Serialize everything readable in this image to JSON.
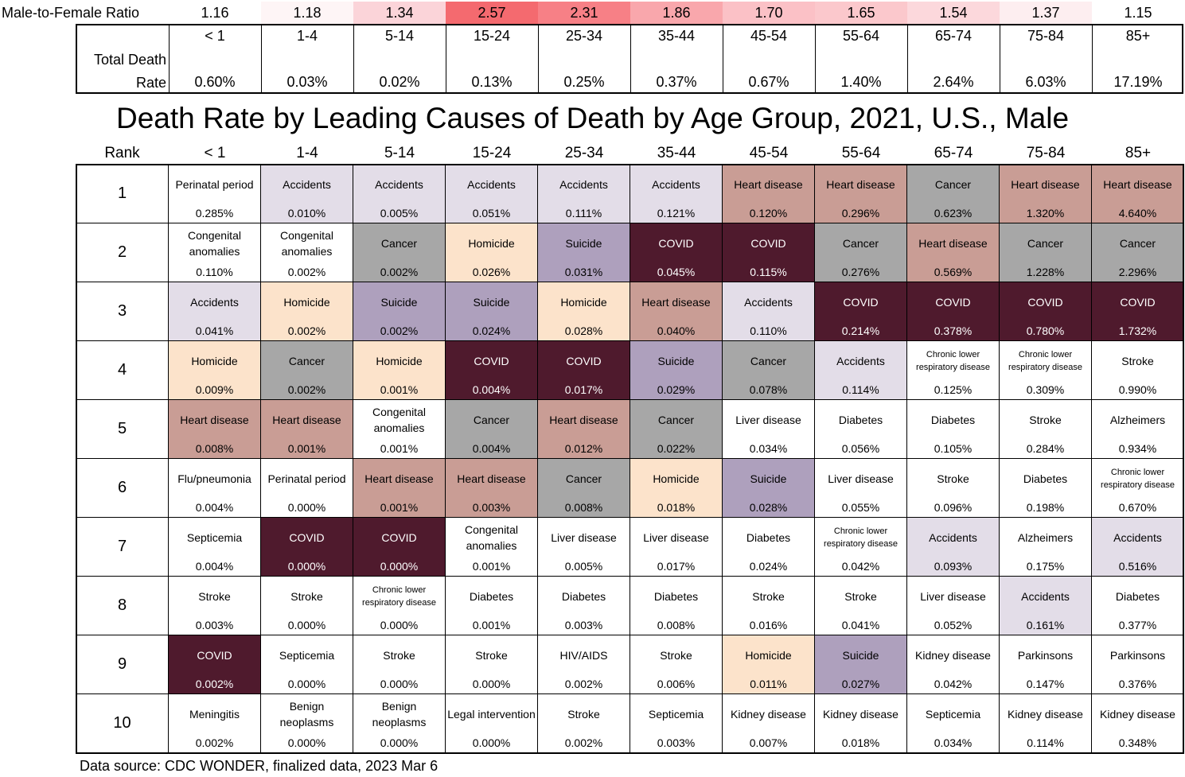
{
  "chart_data": {
    "type": "table",
    "title": "Death Rate by Leading Causes of Death by Age Group, 2021, U.S., Male",
    "source": "Data source: CDC WONDER, finalized data, 2023 Mar 6",
    "ratio_label": "Male-to-Female Ratio",
    "total_label": "Total Death Rate",
    "rank_header": "Rank",
    "age_groups": [
      "< 1",
      "1-4",
      "5-14",
      "15-24",
      "25-34",
      "35-44",
      "45-54",
      "55-64",
      "65-74",
      "75-84",
      "85+"
    ],
    "male_to_female_ratio": [
      "1.16",
      "1.18",
      "1.34",
      "2.57",
      "2.31",
      "1.86",
      "1.70",
      "1.65",
      "1.54",
      "1.37",
      "1.15"
    ],
    "ratio_colors": [
      "#ffffff",
      "#fef5f6",
      "#fbd4d9",
      "#f46a6f",
      "#f78086",
      "#f9a7ac",
      "#fbc1c6",
      "#fbc8cc",
      "#fcd8dc",
      "#fdeef0",
      "#ffffff"
    ],
    "total_death_rate": [
      "0.60%",
      "0.03%",
      "0.02%",
      "0.13%",
      "0.25%",
      "0.37%",
      "0.67%",
      "1.40%",
      "2.64%",
      "6.03%",
      "17.19%"
    ],
    "cause_colors": {
      "Accidents": "#e3dde8",
      "Heart disease": "#c99d95",
      "Cancer": "#a7a7a7",
      "COVID": "#4f1a2d",
      "Homicide": "#fce3cb",
      "Suicide": "#aea0bd"
    },
    "ranks": [
      {
        "rank": "1",
        "cells": [
          {
            "cause": "Perinatal period",
            "rate": "0.285%"
          },
          {
            "cause": "Accidents",
            "rate": "0.010%"
          },
          {
            "cause": "Accidents",
            "rate": "0.005%"
          },
          {
            "cause": "Accidents",
            "rate": "0.051%"
          },
          {
            "cause": "Accidents",
            "rate": "0.111%"
          },
          {
            "cause": "Accidents",
            "rate": "0.121%"
          },
          {
            "cause": "Heart disease",
            "rate": "0.120%"
          },
          {
            "cause": "Heart disease",
            "rate": "0.296%"
          },
          {
            "cause": "Cancer",
            "rate": "0.623%"
          },
          {
            "cause": "Heart disease",
            "rate": "1.320%"
          },
          {
            "cause": "Heart disease",
            "rate": "4.640%"
          }
        ]
      },
      {
        "rank": "2",
        "cells": [
          {
            "cause": "Congenital anomalies",
            "rate": "0.110%"
          },
          {
            "cause": "Congenital anomalies",
            "rate": "0.002%"
          },
          {
            "cause": "Cancer",
            "rate": "0.002%"
          },
          {
            "cause": "Homicide",
            "rate": "0.026%"
          },
          {
            "cause": "Suicide",
            "rate": "0.031%"
          },
          {
            "cause": "COVID",
            "rate": "0.045%"
          },
          {
            "cause": "COVID",
            "rate": "0.115%"
          },
          {
            "cause": "Cancer",
            "rate": "0.276%"
          },
          {
            "cause": "Heart disease",
            "rate": "0.569%"
          },
          {
            "cause": "Cancer",
            "rate": "1.228%"
          },
          {
            "cause": "Cancer",
            "rate": "2.296%"
          }
        ]
      },
      {
        "rank": "3",
        "cells": [
          {
            "cause": "Accidents",
            "rate": "0.041%"
          },
          {
            "cause": "Homicide",
            "rate": "0.002%"
          },
          {
            "cause": "Suicide",
            "rate": "0.002%"
          },
          {
            "cause": "Suicide",
            "rate": "0.024%"
          },
          {
            "cause": "Homicide",
            "rate": "0.028%"
          },
          {
            "cause": "Heart disease",
            "rate": "0.040%"
          },
          {
            "cause": "Accidents",
            "rate": "0.110%"
          },
          {
            "cause": "COVID",
            "rate": "0.214%"
          },
          {
            "cause": "COVID",
            "rate": "0.378%"
          },
          {
            "cause": "COVID",
            "rate": "0.780%"
          },
          {
            "cause": "COVID",
            "rate": "1.732%"
          }
        ]
      },
      {
        "rank": "4",
        "cells": [
          {
            "cause": "Homicide",
            "rate": "0.009%"
          },
          {
            "cause": "Cancer",
            "rate": "0.002%"
          },
          {
            "cause": "Homicide",
            "rate": "0.001%"
          },
          {
            "cause": "COVID",
            "rate": "0.004%"
          },
          {
            "cause": "COVID",
            "rate": "0.017%"
          },
          {
            "cause": "Suicide",
            "rate": "0.029%"
          },
          {
            "cause": "Cancer",
            "rate": "0.078%"
          },
          {
            "cause": "Accidents",
            "rate": "0.114%"
          },
          {
            "cause": "Chronic lower respiratory disease",
            "rate": "0.125%"
          },
          {
            "cause": "Chronic lower respiratory disease",
            "rate": "0.309%"
          },
          {
            "cause": "Stroke",
            "rate": "0.990%"
          }
        ]
      },
      {
        "rank": "5",
        "cells": [
          {
            "cause": "Heart disease",
            "rate": "0.008%"
          },
          {
            "cause": "Heart disease",
            "rate": "0.001%"
          },
          {
            "cause": "Congenital anomalies",
            "rate": "0.001%"
          },
          {
            "cause": "Cancer",
            "rate": "0.004%"
          },
          {
            "cause": "Heart disease",
            "rate": "0.012%"
          },
          {
            "cause": "Cancer",
            "rate": "0.022%"
          },
          {
            "cause": "Liver disease",
            "rate": "0.034%"
          },
          {
            "cause": "Diabetes",
            "rate": "0.056%"
          },
          {
            "cause": "Diabetes",
            "rate": "0.105%"
          },
          {
            "cause": "Stroke",
            "rate": "0.284%"
          },
          {
            "cause": "Alzheimers",
            "rate": "0.934%"
          }
        ]
      },
      {
        "rank": "6",
        "cells": [
          {
            "cause": "Flu/pneumonia",
            "rate": "0.004%"
          },
          {
            "cause": "Perinatal period",
            "rate": "0.000%"
          },
          {
            "cause": "Heart disease",
            "rate": "0.001%"
          },
          {
            "cause": "Heart disease",
            "rate": "0.003%"
          },
          {
            "cause": "Cancer",
            "rate": "0.008%"
          },
          {
            "cause": "Homicide",
            "rate": "0.018%"
          },
          {
            "cause": "Suicide",
            "rate": "0.028%"
          },
          {
            "cause": "Liver disease",
            "rate": "0.055%"
          },
          {
            "cause": "Stroke",
            "rate": "0.096%"
          },
          {
            "cause": "Diabetes",
            "rate": "0.198%"
          },
          {
            "cause": "Chronic lower respiratory disease",
            "rate": "0.670%"
          }
        ]
      },
      {
        "rank": "7",
        "cells": [
          {
            "cause": "Septicemia",
            "rate": "0.004%"
          },
          {
            "cause": "COVID",
            "rate": "0.000%"
          },
          {
            "cause": "COVID",
            "rate": "0.000%"
          },
          {
            "cause": "Congenital anomalies",
            "rate": "0.001%"
          },
          {
            "cause": "Liver disease",
            "rate": "0.005%"
          },
          {
            "cause": "Liver disease",
            "rate": "0.017%"
          },
          {
            "cause": "Diabetes",
            "rate": "0.024%"
          },
          {
            "cause": "Chronic lower respiratory disease",
            "rate": "0.042%"
          },
          {
            "cause": "Accidents",
            "rate": "0.093%"
          },
          {
            "cause": "Alzheimers",
            "rate": "0.175%"
          },
          {
            "cause": "Accidents",
            "rate": "0.516%"
          }
        ]
      },
      {
        "rank": "8",
        "cells": [
          {
            "cause": "Stroke",
            "rate": "0.003%"
          },
          {
            "cause": "Stroke",
            "rate": "0.000%"
          },
          {
            "cause": "Chronic lower respiratory disease",
            "rate": "0.000%"
          },
          {
            "cause": "Diabetes",
            "rate": "0.001%"
          },
          {
            "cause": "Diabetes",
            "rate": "0.003%"
          },
          {
            "cause": "Diabetes",
            "rate": "0.008%"
          },
          {
            "cause": "Stroke",
            "rate": "0.016%"
          },
          {
            "cause": "Stroke",
            "rate": "0.041%"
          },
          {
            "cause": "Liver disease",
            "rate": "0.052%"
          },
          {
            "cause": "Accidents",
            "rate": "0.161%"
          },
          {
            "cause": "Diabetes",
            "rate": "0.377%"
          }
        ]
      },
      {
        "rank": "9",
        "cells": [
          {
            "cause": "COVID",
            "rate": "0.002%"
          },
          {
            "cause": "Septicemia",
            "rate": "0.000%"
          },
          {
            "cause": "Stroke",
            "rate": "0.000%"
          },
          {
            "cause": "Stroke",
            "rate": "0.000%"
          },
          {
            "cause": "HIV/AIDS",
            "rate": "0.002%"
          },
          {
            "cause": "Stroke",
            "rate": "0.006%"
          },
          {
            "cause": "Homicide",
            "rate": "0.011%"
          },
          {
            "cause": "Suicide",
            "rate": "0.027%"
          },
          {
            "cause": "Kidney disease",
            "rate": "0.042%"
          },
          {
            "cause": "Parkinsons",
            "rate": "0.147%"
          },
          {
            "cause": "Parkinsons",
            "rate": "0.376%"
          }
        ]
      },
      {
        "rank": "10",
        "cells": [
          {
            "cause": "Meningitis",
            "rate": "0.002%"
          },
          {
            "cause": "Benign neoplasms",
            "rate": "0.000%"
          },
          {
            "cause": "Benign neoplasms",
            "rate": "0.000%"
          },
          {
            "cause": "Legal intervention",
            "rate": "0.000%"
          },
          {
            "cause": "Stroke",
            "rate": "0.002%"
          },
          {
            "cause": "Septicemia",
            "rate": "0.003%"
          },
          {
            "cause": "Kidney disease",
            "rate": "0.007%"
          },
          {
            "cause": "Kidney disease",
            "rate": "0.018%"
          },
          {
            "cause": "Septicemia",
            "rate": "0.034%"
          },
          {
            "cause": "Kidney disease",
            "rate": "0.114%"
          },
          {
            "cause": "Kidney disease",
            "rate": "0.348%"
          }
        ]
      }
    ]
  }
}
